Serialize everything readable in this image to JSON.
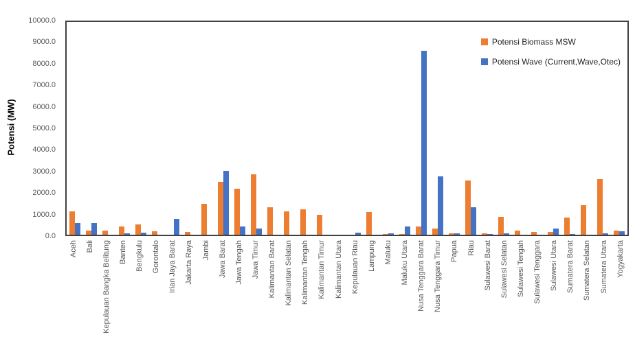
{
  "chart_data": {
    "type": "bar",
    "title": "",
    "xlabel": "",
    "ylabel": "Potensi (MW)",
    "ylim": [
      0,
      10000
    ],
    "ytick_step": 1000,
    "yticks_top_to_bottom": [
      "10000.0",
      "9000.0",
      "8000.0",
      "7000.0",
      "6000.0",
      "5000.0",
      "4000.0",
      "3000.0",
      "2000.0",
      "1000.0",
      "0.0"
    ],
    "grid": false,
    "legend_position": "top-right-inside",
    "categories": [
      "Aceh",
      "Bali",
      "Kepulauan Bangka Belitung",
      "Banten",
      "Bengkulu",
      "Gorontalo",
      "Irian Jaya Barat",
      "Jakarta Raya",
      "Jambi",
      "Jawa Barat",
      "Jawa Tengah",
      "Jawa Timur",
      "Kalimantan Barat",
      "Kalimantan Selatan",
      "Kalimantan Tengah",
      "Kalimantan Timur",
      "Kalimantan Utara",
      "Kepulauan Riau",
      "Lampung",
      "Maluku",
      "Maluku Utara",
      "Nusa Tenggara Barat",
      "Nusa Tenggara Timur",
      "Papua",
      "Riau",
      "Sulawesi Barat",
      "Sulawesi Selatan",
      "Sulawesi Tengah",
      "Sulawesi Tenggara",
      "Sulawesi Utara",
      "Sumatera Barat",
      "Sumatera Selatan",
      "Sumatera Utara",
      "Yogyakarta"
    ],
    "series": [
      {
        "key": "biomass",
        "name": "Potensi Biomass MSW",
        "color": "#ED7D31",
        "values": [
          1100,
          200,
          200,
          400,
          500,
          170,
          0,
          130,
          1450,
          2500,
          2150,
          2850,
          1300,
          1100,
          1200,
          950,
          0,
          0,
          1050,
          30,
          30,
          400,
          300,
          50,
          2550,
          70,
          850,
          200,
          120,
          130,
          800,
          1400,
          2600,
          180
        ]
      },
      {
        "key": "wave",
        "name": "Potensi Wave (Current,Wave,Otec)",
        "color": "#4472C4",
        "values": [
          550,
          550,
          0,
          70,
          100,
          0,
          750,
          0,
          0,
          3000,
          400,
          300,
          0,
          0,
          0,
          0,
          0,
          100,
          0,
          70,
          400,
          8650,
          2750,
          80,
          1300,
          30,
          50,
          0,
          0,
          300,
          30,
          0,
          80,
          150
        ]
      }
    ]
  },
  "colors": {
    "plot_border": "#404040",
    "tick_text": "#595959",
    "legend_text": "#1f1f1f",
    "background": "#ffffff"
  }
}
